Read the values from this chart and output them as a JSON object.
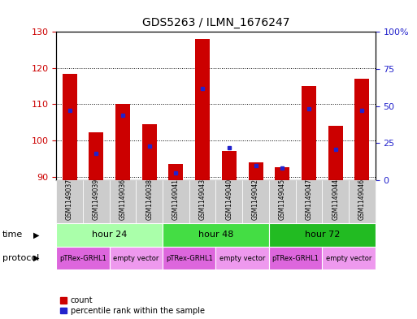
{
  "title": "GDS5263 / ILMN_1676247",
  "samples": [
    "GSM1149037",
    "GSM1149039",
    "GSM1149036",
    "GSM1149038",
    "GSM1149041",
    "GSM1149043",
    "GSM1149040",
    "GSM1149042",
    "GSM1149045",
    "GSM1149047",
    "GSM1149044",
    "GSM1149046"
  ],
  "counts": [
    118.5,
    102.2,
    110.0,
    104.5,
    93.5,
    128.0,
    97.0,
    94.0,
    92.5,
    115.0,
    104.0,
    117.0
  ],
  "percentile_ranks": [
    47,
    18,
    44,
    23,
    5,
    62,
    22,
    10,
    8,
    48,
    21,
    47
  ],
  "ylim_left": [
    89,
    130
  ],
  "yticks_left": [
    90,
    100,
    110,
    120,
    130
  ],
  "ylim_right": [
    0,
    100
  ],
  "yticks_right": [
    0,
    25,
    50,
    75,
    100
  ],
  "bar_color": "#cc0000",
  "percentile_color": "#2222cc",
  "bar_width": 0.55,
  "time_groups": [
    {
      "label": "hour 24",
      "start": 0,
      "end": 3,
      "color": "#aaffaa"
    },
    {
      "label": "hour 48",
      "start": 4,
      "end": 7,
      "color": "#44dd44"
    },
    {
      "label": "hour 72",
      "start": 8,
      "end": 11,
      "color": "#22bb22"
    }
  ],
  "protocol_groups": [
    {
      "label": "pTRex-GRHL1",
      "start": 0,
      "end": 1,
      "color": "#dd66dd"
    },
    {
      "label": "empty vector",
      "start": 2,
      "end": 3,
      "color": "#ee99ee"
    },
    {
      "label": "pTRex-GRHL1",
      "start": 4,
      "end": 5,
      "color": "#dd66dd"
    },
    {
      "label": "empty vector",
      "start": 6,
      "end": 7,
      "color": "#ee99ee"
    },
    {
      "label": "pTRex-GRHL1",
      "start": 8,
      "end": 9,
      "color": "#dd66dd"
    },
    {
      "label": "empty vector",
      "start": 10,
      "end": 11,
      "color": "#ee99ee"
    }
  ],
  "sample_bg_color": "#cccccc",
  "bg_color": "#ffffff",
  "plot_bg_color": "#ffffff",
  "grid_color": "#000000",
  "left_tick_color": "#cc0000",
  "right_tick_color": "#2222cc",
  "legend_items": [
    {
      "label": "count",
      "color": "#cc0000"
    },
    {
      "label": "percentile rank within the sample",
      "color": "#2222cc"
    }
  ]
}
